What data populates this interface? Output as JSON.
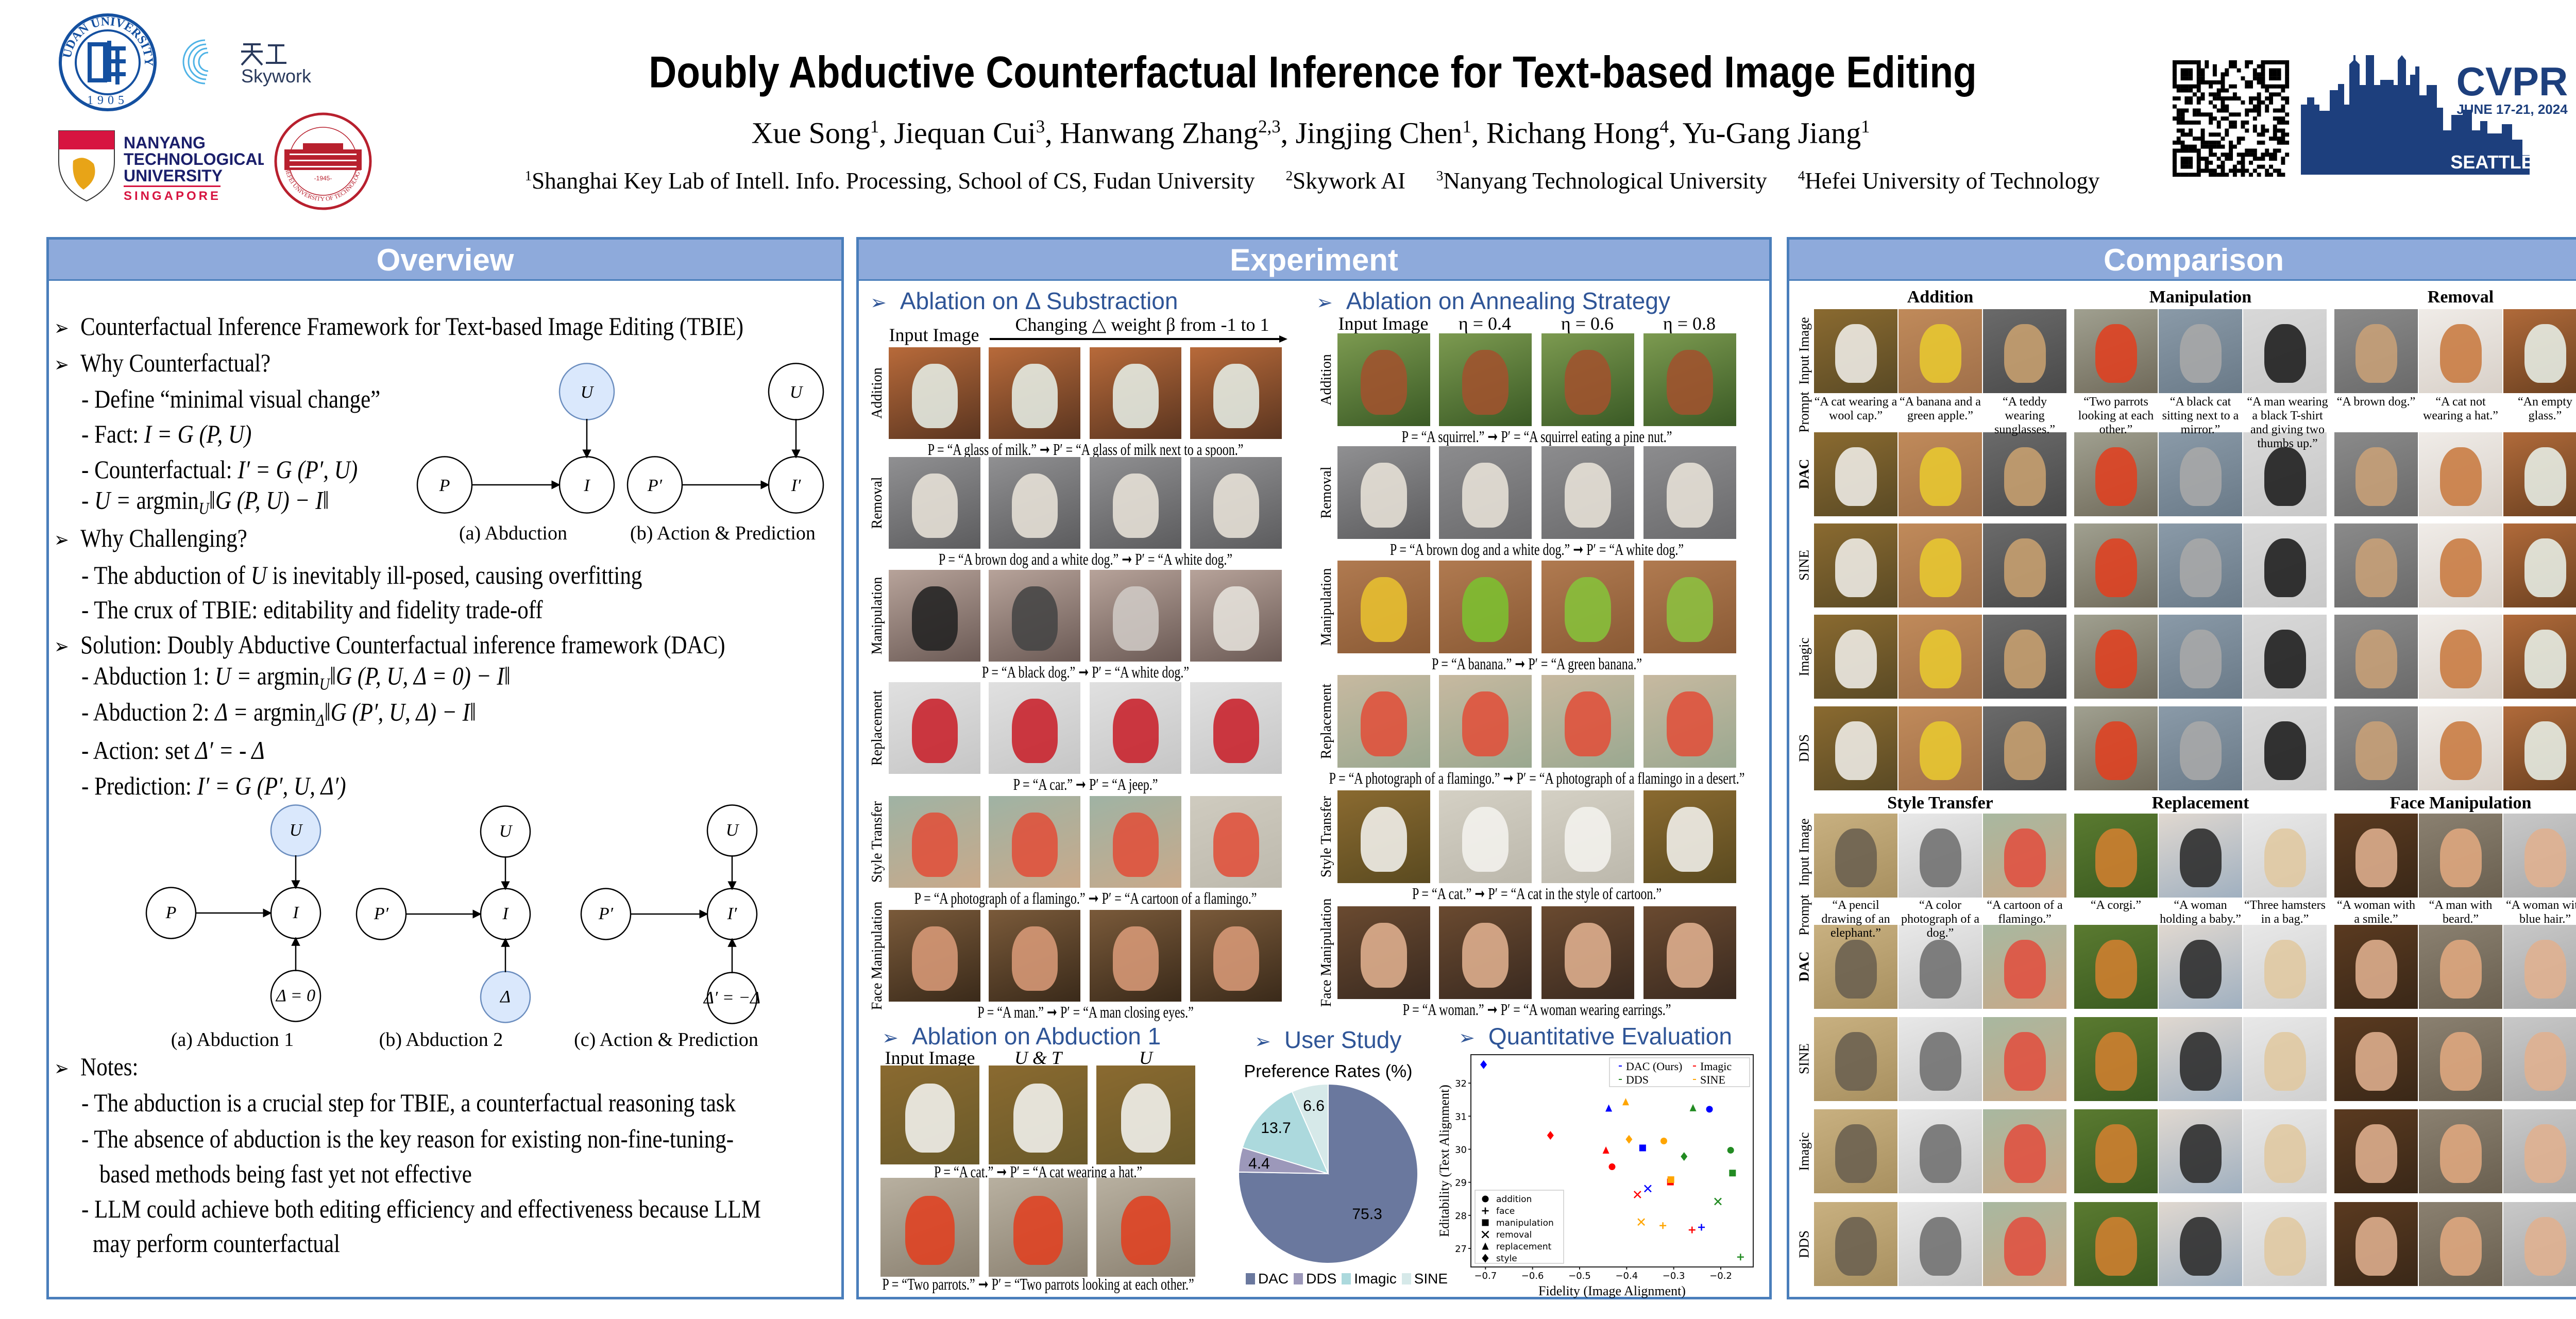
{
  "header": {
    "title": "Doubly Abductive Counterfactual Inference for Text-based Image Editing",
    "authors": [
      {
        "name": "Xue Song",
        "sup": "1"
      },
      {
        "name": "Jiequan Cui",
        "sup": "3"
      },
      {
        "name": "Hanwang Zhang",
        "sup": "2,3"
      },
      {
        "name": "Jingjing Chen",
        "sup": "1"
      },
      {
        "name": "Richang Hong",
        "sup": "4"
      },
      {
        "name": "Yu-Gang Jiang",
        "sup": "1"
      }
    ],
    "affiliations": [
      {
        "sup": "1",
        "text": "Shanghai Key Lab of Intell. Info. Processing, School of CS, Fudan University"
      },
      {
        "sup": "2",
        "text": "Skywork AI"
      },
      {
        "sup": "3",
        "text": "Nanyang Technological University"
      },
      {
        "sup": "4",
        "text": "Hefei University of Technology"
      }
    ],
    "logos": {
      "fudan": {
        "ring": "FUDAN UNIVERSITY",
        "year": "1905"
      },
      "skywork": {
        "cn": "天工",
        "en": "Skywork"
      },
      "ntu": {
        "lines": [
          "NANYANG",
          "TECHNOLOGICAL",
          "UNIVERSITY"
        ],
        "country": "SINGAPORE"
      },
      "hefei": {
        "ring": "HEFEI UNIVERSITY OF TECHNOLOGY",
        "year": "-1945-"
      },
      "cvpr": {
        "name": "CVPR",
        "dates": "JUNE 17-21, 2024",
        "place": "SEATTLE, WA"
      }
    },
    "colors": {
      "cvpr_navy": "#1d3f7d",
      "fudan_blue": "#1450a0",
      "ntu_red": "#d71440",
      "ntu_navy": "#1b1f6b",
      "hefei_red": "#b8202e"
    }
  },
  "overview": {
    "title": "Overview",
    "lines": [
      {
        "type": "bullet",
        "segs": [
          {
            "t": "Counterfactual Inference Framework for Text-based Image Editing (TBIE)"
          }
        ]
      },
      {
        "type": "bullet",
        "segs": [
          {
            "t": "Why Counterfactual?"
          }
        ]
      },
      {
        "type": "sub",
        "segs": [
          {
            "t": "- Define “minimal visual change”"
          }
        ]
      },
      {
        "type": "sub",
        "segs": [
          {
            "t": "- Fact: "
          },
          {
            "t": "I = G (P, U)",
            "m": true
          }
        ]
      },
      {
        "type": "sub",
        "segs": [
          {
            "t": "- Counterfactual: "
          },
          {
            "t": "I′ = G (P′, U)",
            "m": true
          }
        ]
      },
      {
        "type": "sub",
        "segs": [
          {
            "t": "- "
          },
          {
            "t": "U  =  ",
            "m": true
          },
          {
            "t": "argmin"
          },
          {
            "t": "U",
            "s": true
          },
          {
            "t": "‖G (P, U) − I‖",
            "m": true
          }
        ]
      },
      {
        "type": "bullet",
        "segs": [
          {
            "t": "Why Challenging?"
          }
        ]
      },
      {
        "type": "sub",
        "segs": [
          {
            "t": "- The abduction of "
          },
          {
            "t": "U",
            "m": true
          },
          {
            "t": " is inevitably ill-posed, causing overfitting"
          }
        ]
      },
      {
        "type": "sub",
        "segs": [
          {
            "t": "- The crux of TBIE: editability and fidelity trade-off"
          }
        ]
      },
      {
        "type": "bullet",
        "segs": [
          {
            "t": "Solution: Doubly Abductive Counterfactual inference framework (DAC)"
          }
        ]
      },
      {
        "type": "sub",
        "segs": [
          {
            "t": "- Abduction 1: "
          },
          {
            "t": "U = ",
            "m": true
          },
          {
            "t": " argmin"
          },
          {
            "t": "U",
            "s": true
          },
          {
            "t": "‖G (P, U, Δ = 0) − I‖",
            "m": true
          }
        ]
      },
      {
        "type": "sub",
        "segs": [
          {
            "t": "- Abduction 2: "
          },
          {
            "t": "Δ = ",
            "m": true
          },
          {
            "t": " argmin"
          },
          {
            "t": "Δ",
            "s": true
          },
          {
            "t": "‖G (P′, U, Δ) − I‖",
            "m": true
          }
        ]
      },
      {
        "type": "sub",
        "segs": [
          {
            "t": "- Action: set "
          },
          {
            "t": "Δ′ = - Δ",
            "m": true
          }
        ]
      },
      {
        "type": "sub",
        "segs": [
          {
            "t": "- Prediction: "
          },
          {
            "t": "I′ = G (P′, U, Δ′)",
            "m": true
          }
        ]
      },
      {
        "type": "bullet",
        "segs": [
          {
            "t": "Notes:"
          }
        ]
      },
      {
        "type": "sub",
        "segs": [
          {
            "t": "- The abduction is a crucial step for TBIE, a counterfactual reasoning task"
          }
        ]
      },
      {
        "type": "sub",
        "segs": [
          {
            "t": "- The absence of abduction is the key reason for existing non-fine-tuning-"
          }
        ]
      },
      {
        "type": "cont",
        "segs": [
          {
            "t": "based methods being fast yet not effective"
          }
        ]
      },
      {
        "type": "sub",
        "segs": [
          {
            "t": "- LLM could achieve both editing efficiency and effectiveness because LLM"
          }
        ]
      },
      {
        "type": "cont2",
        "segs": [
          {
            "t": "may perform counterfactual"
          }
        ]
      }
    ],
    "diagram1": {
      "nodes": [
        "U",
        "P",
        "I",
        "P′",
        "I′",
        "U"
      ],
      "captions": [
        "(a) Abduction",
        "(b) Action & Prediction"
      ]
    },
    "diagram2": {
      "nodes": [
        "U",
        "P",
        "I",
        "Δ = 0",
        "U",
        "P′",
        "I",
        "Δ",
        "U",
        "P′",
        "I′",
        "Δ′ = −Δ"
      ],
      "captions": [
        "(a) Abduction 1",
        "(b) Abduction 2",
        "(c) Action & Prediction"
      ]
    },
    "highlight_color": "#dae8fc"
  },
  "experiment": {
    "title": "Experiment",
    "delta": {
      "heading": "Ablation on Δ Substraction",
      "input_label": "Input Image",
      "axis_label": "Changing △ weight β from -1 to 1",
      "rows": [
        {
          "label": "Addition",
          "caption": "P = “A glass of milk.” ➞ P′ = “A glass of milk next to a spoon.”"
        },
        {
          "label": "Removal",
          "caption": "P = “A brown dog and a white dog.” ➞ P′ = “A white dog.”"
        },
        {
          "label": "Manipulation",
          "caption": "P = “A black dog.” ➞ P′ =  “A white dog.”"
        },
        {
          "label": "Replacement",
          "caption": "P = “A car.” ➞ P′ = “A jeep.”"
        },
        {
          "label": "Style Transfer",
          "caption": "P = “A photograph of a flamingo.” ➞ P′ = “A cartoon of a flamingo.”"
        },
        {
          "label": "Face Manipulation",
          "caption": "P = “A man.” ➞ P′ = “A man closing eyes.”"
        }
      ]
    },
    "annealing": {
      "heading": "Ablation on Annealing Strategy",
      "columns": [
        "Input Image",
        "η = 0.4",
        "η = 0.6",
        "η = 0.8"
      ],
      "rows": [
        {
          "label": "Addition",
          "caption": "P = “A squirrel.” ➞ P′ = “A squirrel eating a pine nut.”"
        },
        {
          "label": "Removal",
          "caption": "P = “A brown dog and a white dog.” ➞ P′ = “A white dog.”"
        },
        {
          "label": "Manipulation",
          "caption": "P = “A banana.” ➞ P′ =  “A green banana.”"
        },
        {
          "label": "Replacement",
          "caption": "P = “A photograph of a flamingo.” ➞ P′ = “A photograph of a flamingo in a desert.”"
        },
        {
          "label": "Style Transfer",
          "caption": "P = “A cat.” ➞ P′ = “A cat in the style of cartoon.”"
        },
        {
          "label": "Face Manipulation",
          "caption": "P = “A woman.” ➞ P′ = “A woman wearing earrings.”"
        }
      ]
    },
    "abduction": {
      "heading": "Ablation on Abduction 1",
      "columns": [
        "Input Image",
        "U & T",
        "U"
      ],
      "captions": [
        "P = “A cat.” ➞ P′ =  “A cat wearing a hat.”",
        "P = “Two parrots.” ➞ P′ =  “Two parrots looking at each other.”"
      ]
    },
    "user_study": {
      "heading": "User Study"
    },
    "quantitative": {
      "heading": "Quantitative Evaluation"
    }
  },
  "comparison": {
    "title": "Comparison",
    "row_labels": [
      "Input Image",
      "Prompt",
      "DAC",
      "SINE",
      "Imagic",
      "DDS"
    ],
    "top_groups": [
      {
        "title": "Addition",
        "prompts": [
          "“A cat wearing a wool cap.”",
          "“A banana and a green apple.”",
          "“A teddy wearing sunglasses.”"
        ]
      },
      {
        "title": "Manipulation",
        "prompts": [
          "“Two parrots looking at each other.”",
          "“A black cat sitting next to a mirror.”",
          "“A man wearing a black T-shirt and giving two thumbs up.”"
        ]
      },
      {
        "title": "Removal",
        "prompts": [
          "“A brown dog.”",
          "“A cat not wearing a hat.”",
          "“An empty glass.”"
        ]
      }
    ],
    "bottom_groups": [
      {
        "title": "Style Transfer",
        "prompts": [
          "“A pencil drawing of an elephant.”",
          "“A color photograph of a dog.”",
          "“A cartoon of a flamingo.”"
        ]
      },
      {
        "title": "Replacement",
        "prompts": [
          "“A corgi.”",
          "“A woman holding a baby.”",
          "“Three hamsters in a bag.”"
        ]
      },
      {
        "title": "Face Manipulation",
        "prompts": [
          "“A woman with a smile.”",
          "“A man with beard.”",
          "“A woman with blue hair.”"
        ]
      }
    ]
  },
  "chart_data": [
    {
      "type": "pie",
      "title": "Preference Rates (%)",
      "categories": [
        "DAC",
        "DDS",
        "Imagic",
        "SINE"
      ],
      "values": [
        75.3,
        4.4,
        13.7,
        6.6
      ],
      "colors": [
        "#6a789e",
        "#9c98ba",
        "#acd9dd",
        "#d6e9e9"
      ],
      "legend": "bottom",
      "start": "top, clockwise"
    },
    {
      "type": "scatter",
      "xlabel": "Fidelity (Image Alignment)",
      "ylabel": "Editability (Text Alignment)",
      "xlim": [
        -0.731,
        -0.131
      ],
      "ylim": [
        26.44,
        32.86
      ],
      "xticks": [
        -0.7,
        -0.6,
        -0.5,
        -0.4,
        -0.3,
        -0.2
      ],
      "xtick_labels": [
        "−0.7",
        "−0.6",
        "−0.5",
        "−0.4",
        "−0.3",
        "−0.2"
      ],
      "yticks": [
        27,
        28,
        29,
        30,
        31,
        32
      ],
      "grid": false,
      "marker_legend": {
        "placement": "lower-left",
        "entries": [
          {
            "name": "addition",
            "marker": "circle"
          },
          {
            "name": "face",
            "marker": "plus"
          },
          {
            "name": "manipulation",
            "marker": "square"
          },
          {
            "name": "removal",
            "marker": "x"
          },
          {
            "name": "replacement",
            "marker": "triangle"
          },
          {
            "name": "style",
            "marker": "diamond"
          }
        ]
      },
      "series_legend": {
        "placement": "top-right"
      },
      "series": [
        {
          "name": "DAC (Ours)",
          "color": "#0000ff",
          "points": {
            "addition": [
              -0.224,
              31.21
            ],
            "face": [
              -0.241,
              27.64
            ],
            "manipulation": [
              -0.366,
              30.04
            ],
            "removal": [
              -0.355,
              28.81
            ],
            "replacement": [
              -0.438,
              31.24
            ],
            "style": [
              -0.704,
              32.56
            ]
          }
        },
        {
          "name": "Imagic",
          "color": "#ff0000",
          "points": {
            "addition": [
              -0.431,
              29.47
            ],
            "face": [
              -0.261,
              27.56
            ],
            "manipulation": [
              -0.307,
              29.01
            ],
            "removal": [
              -0.377,
              28.63
            ],
            "replacement": [
              -0.444,
              29.97
            ],
            "style": [
              -0.562,
              30.42
            ]
          }
        },
        {
          "name": "DDS",
          "color": "#228b22",
          "points": {
            "addition": [
              -0.179,
              29.97
            ],
            "face": [
              -0.158,
              26.74
            ],
            "manipulation": [
              -0.175,
              29.28
            ],
            "removal": [
              -0.206,
              28.42
            ],
            "replacement": [
              -0.259,
              31.25
            ],
            "style": [
              -0.278,
              29.78
            ]
          }
        },
        {
          "name": "SINE",
          "color": "#ffa500",
          "points": {
            "addition": [
              -0.321,
              30.25
            ],
            "face": [
              -0.323,
              27.69
            ],
            "manipulation": [
              -0.306,
              29.08
            ],
            "removal": [
              -0.369,
              27.8
            ],
            "replacement": [
              -0.402,
              31.43
            ],
            "style": [
              -0.395,
              30.3
            ]
          }
        }
      ]
    }
  ]
}
